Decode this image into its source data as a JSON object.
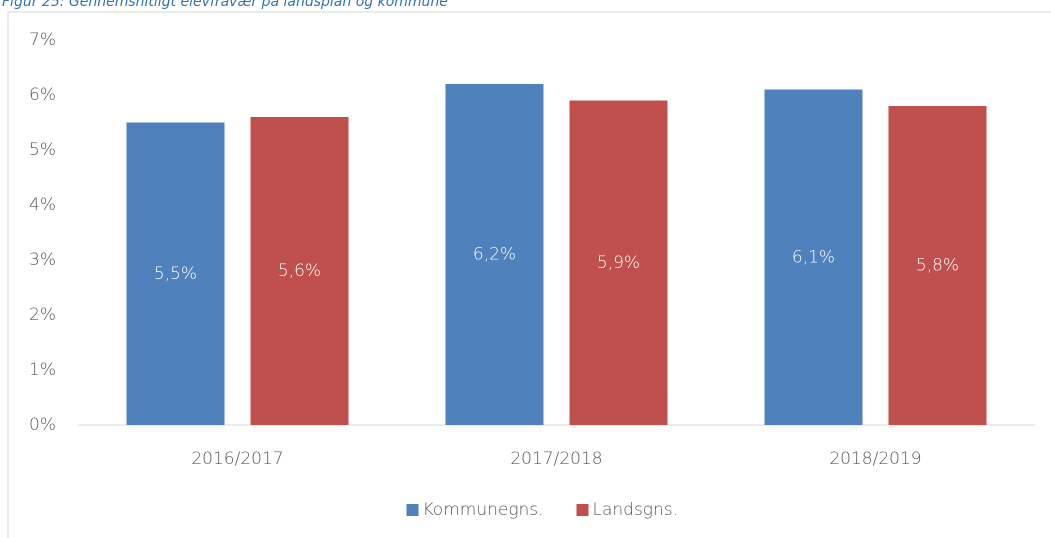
{
  "chart_data": {
    "type": "bar",
    "title": "Figur 25: Gennemsnitligt elevfravær på landsplan og kommune",
    "categories": [
      "2016/2017",
      "2017/2018",
      "2018/2019"
    ],
    "series": [
      {
        "name": "Kommunegns.",
        "color": "#4f81bd",
        "values": [
          5.5,
          6.2,
          6.1
        ],
        "value_labels": [
          "5,5%",
          "6,2%",
          "6,1%"
        ]
      },
      {
        "name": "Landsgns.",
        "color": "#c0504d",
        "values": [
          5.6,
          5.9,
          5.8
        ],
        "value_labels": [
          "5,6%",
          "5,9%",
          "5,8%"
        ]
      }
    ],
    "ylim": [
      0,
      7
    ],
    "yticks": [
      {
        "value": 0,
        "label": "0%"
      },
      {
        "value": 1,
        "label": "1%"
      },
      {
        "value": 2,
        "label": "2%"
      },
      {
        "value": 3,
        "label": "3%"
      },
      {
        "value": 4,
        "label": "4%"
      },
      {
        "value": 5,
        "label": "5%"
      },
      {
        "value": 6,
        "label": "6%"
      },
      {
        "value": 7,
        "label": "7%"
      }
    ],
    "grid": false,
    "legend": "bottom"
  }
}
